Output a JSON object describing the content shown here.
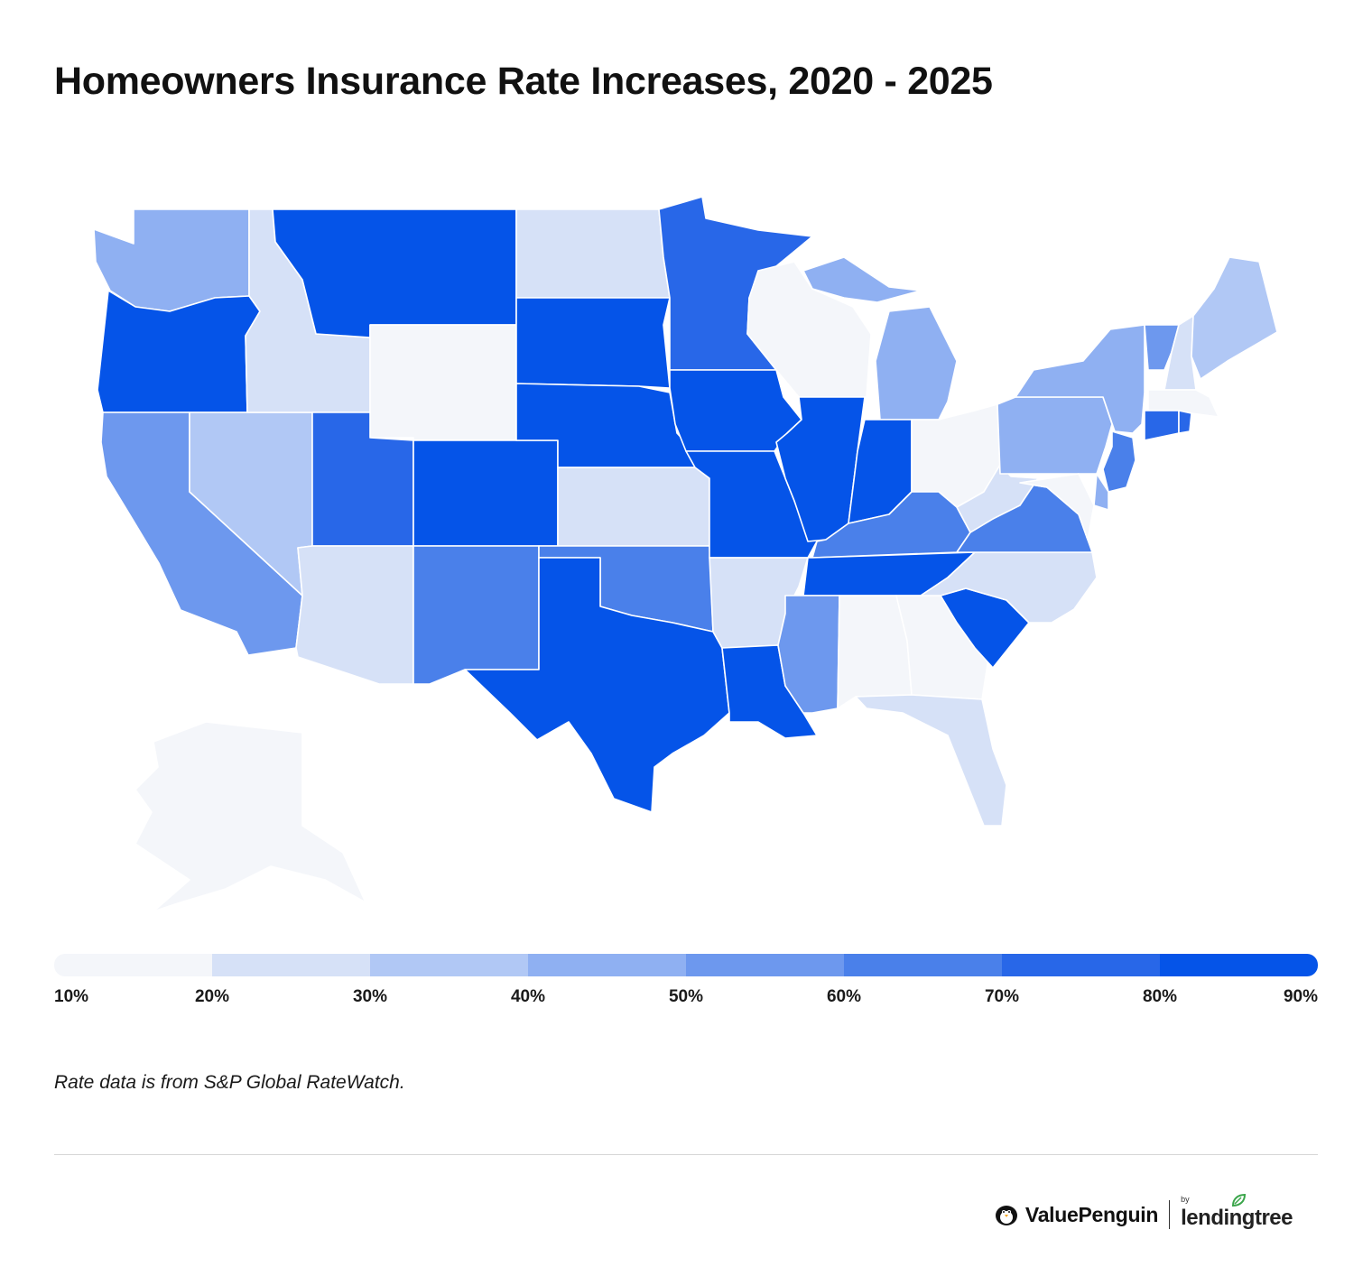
{
  "title": "Homeowners Insurance Rate Increases, 2020 - 2025",
  "legend": {
    "ticks": [
      "10%",
      "20%",
      "30%",
      "40%",
      "50%",
      "60%",
      "70%",
      "80%",
      "90%"
    ],
    "colors": [
      "#f4f6fa",
      "#d6e1f7",
      "#b1c8f5",
      "#8fb0f2",
      "#6d98ee",
      "#4a80ea",
      "#2867e8",
      "#0554e8"
    ]
  },
  "map": {
    "states": [
      {
        "id": "WA",
        "bin": 3
      },
      {
        "id": "OR",
        "bin": 7
      },
      {
        "id": "CA",
        "bin": 4
      },
      {
        "id": "NV",
        "bin": 2
      },
      {
        "id": "ID",
        "bin": 1
      },
      {
        "id": "MT",
        "bin": 7
      },
      {
        "id": "WY",
        "bin": 0
      },
      {
        "id": "UT",
        "bin": 6
      },
      {
        "id": "AZ",
        "bin": 1
      },
      {
        "id": "CO",
        "bin": 7
      },
      {
        "id": "NM",
        "bin": 5
      },
      {
        "id": "ND",
        "bin": 1
      },
      {
        "id": "SD",
        "bin": 7
      },
      {
        "id": "NE",
        "bin": 7
      },
      {
        "id": "KS",
        "bin": 1
      },
      {
        "id": "OK",
        "bin": 5
      },
      {
        "id": "TX",
        "bin": 7
      },
      {
        "id": "MN",
        "bin": 6
      },
      {
        "id": "IA",
        "bin": 7
      },
      {
        "id": "MO",
        "bin": 7
      },
      {
        "id": "AR",
        "bin": 1
      },
      {
        "id": "LA",
        "bin": 7
      },
      {
        "id": "WI",
        "bin": 0
      },
      {
        "id": "IL",
        "bin": 7
      },
      {
        "id": "MI",
        "bin": 3
      },
      {
        "id": "IN",
        "bin": 7
      },
      {
        "id": "OH",
        "bin": 0
      },
      {
        "id": "KY",
        "bin": 5
      },
      {
        "id": "TN",
        "bin": 7
      },
      {
        "id": "MS",
        "bin": 4
      },
      {
        "id": "AL",
        "bin": 0
      },
      {
        "id": "GA",
        "bin": 0
      },
      {
        "id": "FL",
        "bin": 1
      },
      {
        "id": "SC",
        "bin": 7
      },
      {
        "id": "NC",
        "bin": 1
      },
      {
        "id": "VA",
        "bin": 5
      },
      {
        "id": "WV",
        "bin": 1
      },
      {
        "id": "PA",
        "bin": 3
      },
      {
        "id": "NY",
        "bin": 3
      },
      {
        "id": "VT",
        "bin": 4
      },
      {
        "id": "NH",
        "bin": 1
      },
      {
        "id": "ME",
        "bin": 2
      },
      {
        "id": "MA",
        "bin": 0
      },
      {
        "id": "CT",
        "bin": 6
      },
      {
        "id": "RI",
        "bin": 6
      },
      {
        "id": "NJ",
        "bin": 5
      },
      {
        "id": "DE",
        "bin": 3
      },
      {
        "id": "MD",
        "bin": 0
      },
      {
        "id": "AK",
        "bin": 0
      }
    ]
  },
  "source_note": "Rate data is from S&P Global RateWatch.",
  "brand": {
    "valuepenguin": "ValuePenguin",
    "by": "by",
    "lendingtree": "lendingtree"
  }
}
